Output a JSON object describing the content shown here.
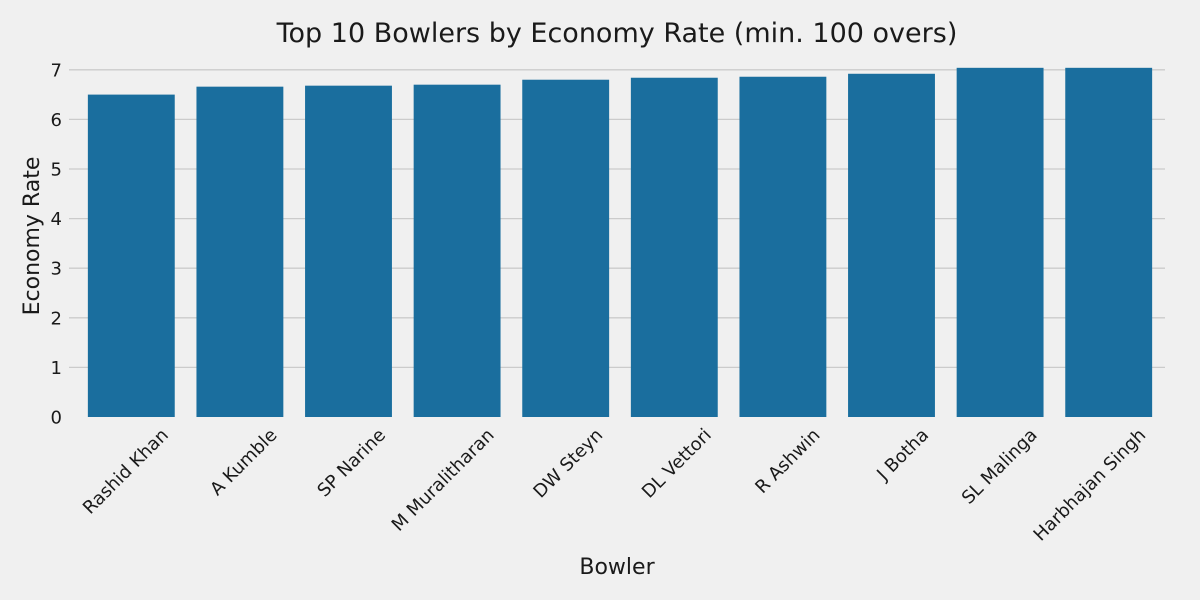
{
  "chart_data": {
    "type": "bar",
    "title": "Top 10 Bowlers by Economy Rate (min. 100 overs)",
    "xlabel": "Bowler",
    "ylabel": "Economy Rate",
    "categories": [
      "Rashid Khan",
      "A Kumble",
      "SP Narine",
      "M Muralitharan",
      "DW Steyn",
      "DL Vettori",
      "R Ashwin",
      "J Botha",
      "SL Malinga",
      "Harbhajan Singh"
    ],
    "values": [
      6.5,
      6.66,
      6.68,
      6.7,
      6.8,
      6.84,
      6.86,
      6.92,
      7.04,
      7.04
    ],
    "ylim": [
      0,
      7.0
    ],
    "yticks": [
      0,
      1,
      2,
      3,
      4,
      5,
      6,
      7
    ],
    "grid": true,
    "legend": "none",
    "colors": {
      "bar": "#1a6e9e",
      "background": "#f0f0f0",
      "grid": "#cbcbcb",
      "text": "#1a1a1a"
    }
  }
}
